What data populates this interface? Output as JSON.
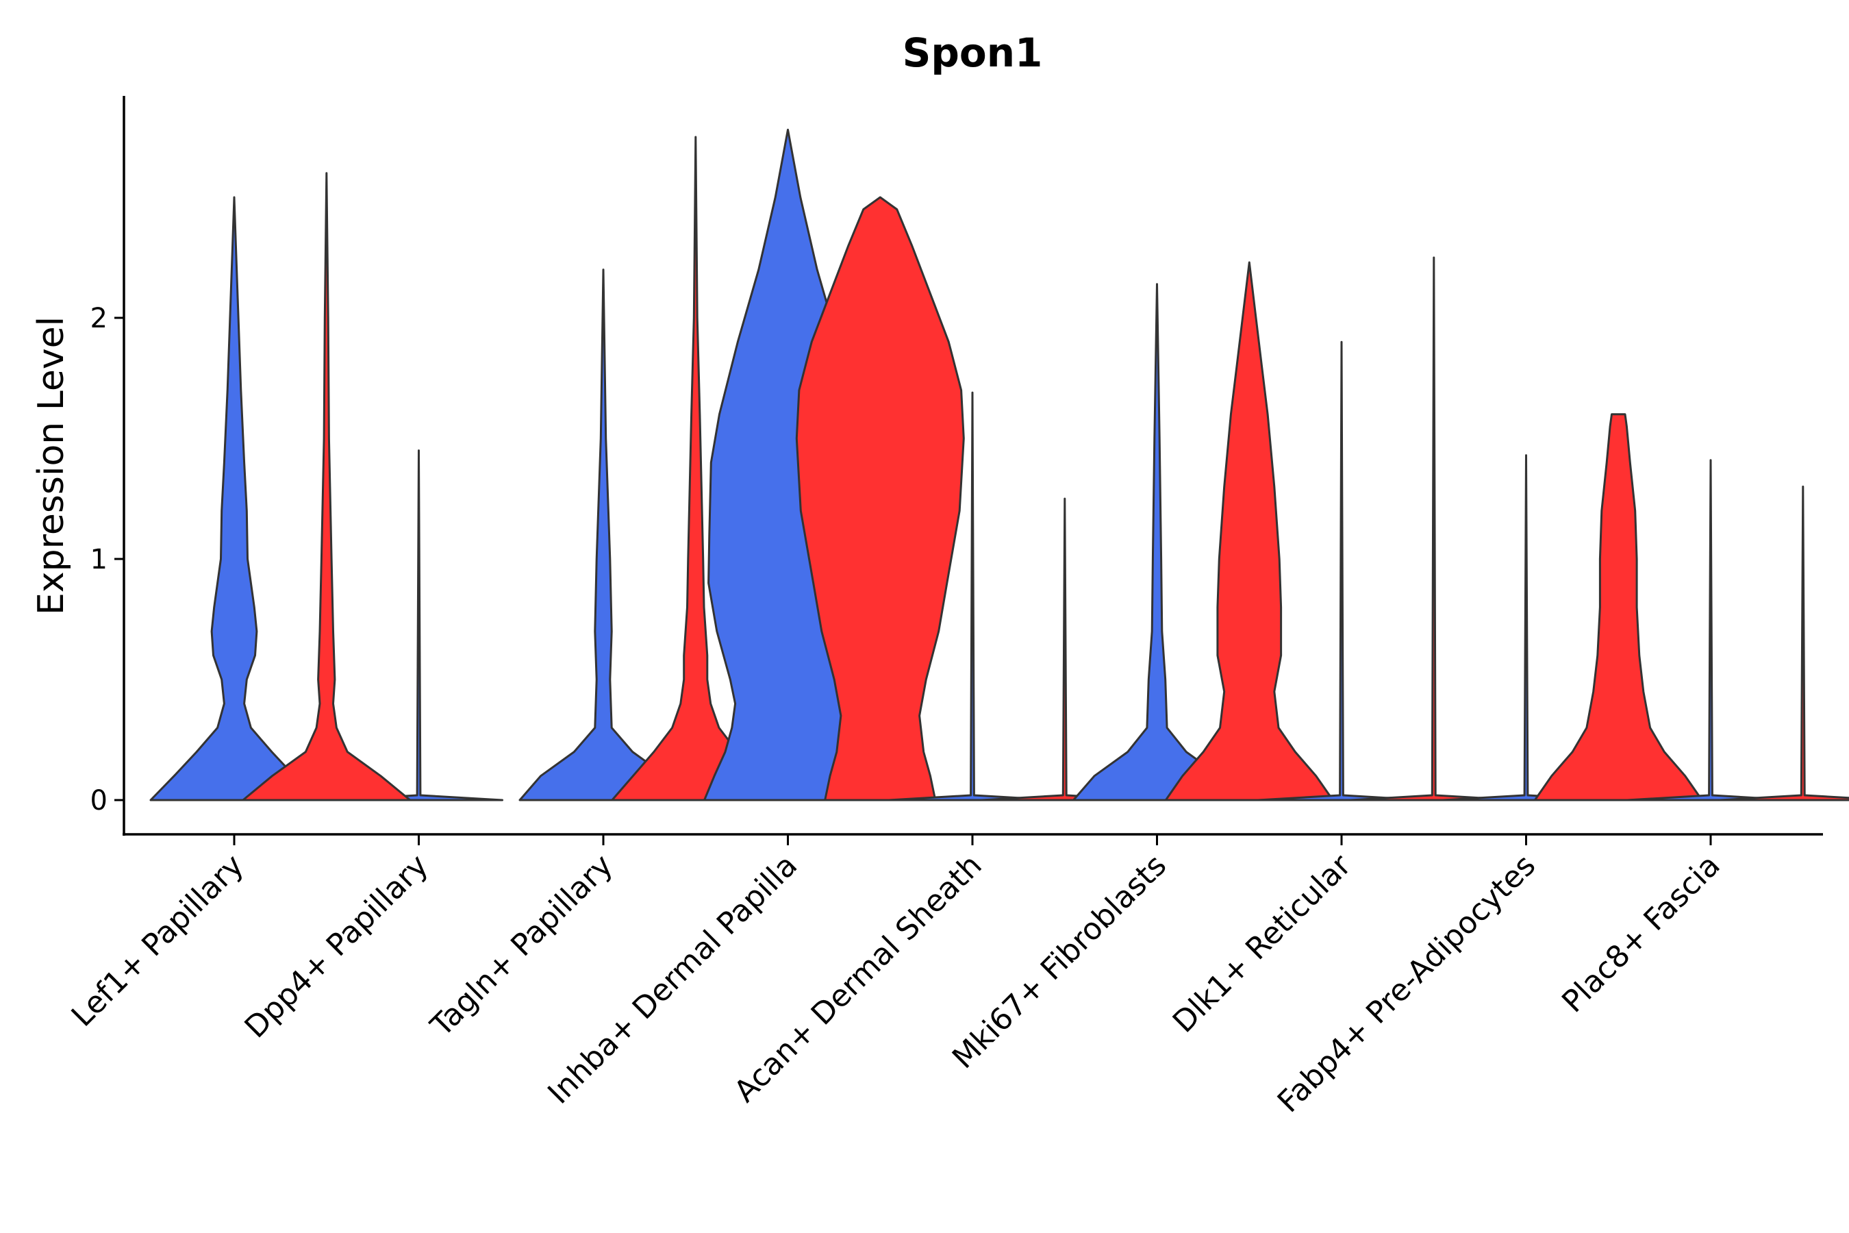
{
  "chart_data": {
    "type": "violin",
    "title": "Spon1",
    "xlabel": "",
    "ylabel": "Expression Level",
    "ylim": [
      -0.14,
      2.9
    ],
    "yticks": [
      0,
      1,
      2
    ],
    "legend": "none",
    "colors": {
      "group_a": "#4670EB",
      "group_b": "#FF3131",
      "outline": "#333333"
    },
    "categories": [
      "Lef1+ Papillary",
      "Dpp4+ Papillary",
      "Tagln+ Papillary",
      "Inhba+ Dermal Papilla",
      "Acan+ Dermal Sheath",
      "Mki67+ Fibroblasts",
      "Dlk1+ Reticular",
      "Fabp4+ Pre-Adipocytes",
      "Plac8+ Fascia"
    ],
    "violins": [
      {
        "category": 0,
        "group": "a",
        "max": 2.5,
        "profile": [
          [
            0,
            1.0
          ],
          [
            0.1,
            0.72
          ],
          [
            0.2,
            0.45
          ],
          [
            0.3,
            0.2
          ],
          [
            0.4,
            0.12
          ],
          [
            0.5,
            0.15
          ],
          [
            0.6,
            0.25
          ],
          [
            0.7,
            0.27
          ],
          [
            0.8,
            0.24
          ],
          [
            0.9,
            0.2
          ],
          [
            1.0,
            0.16
          ],
          [
            1.2,
            0.15
          ],
          [
            1.4,
            0.12
          ],
          [
            1.7,
            0.08
          ],
          [
            2.0,
            0.05
          ],
          [
            2.3,
            0.02
          ],
          [
            2.5,
            0.0
          ]
        ]
      },
      {
        "category": 1,
        "group": "a",
        "max": 1.45,
        "profile": [
          [
            0,
            1.0
          ],
          [
            0.02,
            0.02
          ],
          [
            1.45,
            0.0
          ]
        ]
      },
      {
        "category": 0.5,
        "group": "b",
        "max": 2.6,
        "profile": [
          [
            0,
            1.0
          ],
          [
            0.1,
            0.65
          ],
          [
            0.2,
            0.25
          ],
          [
            0.3,
            0.12
          ],
          [
            0.4,
            0.08
          ],
          [
            0.5,
            0.1
          ],
          [
            0.7,
            0.08
          ],
          [
            1.0,
            0.06
          ],
          [
            1.5,
            0.03
          ],
          [
            2.0,
            0.02
          ],
          [
            2.6,
            0.0
          ]
        ]
      },
      {
        "category": 2,
        "group": "a",
        "max": 2.2,
        "profile": [
          [
            0,
            1.0
          ],
          [
            0.1,
            0.75
          ],
          [
            0.2,
            0.35
          ],
          [
            0.3,
            0.1
          ],
          [
            0.5,
            0.08
          ],
          [
            0.7,
            0.1
          ],
          [
            1.0,
            0.08
          ],
          [
            1.5,
            0.03
          ],
          [
            2.2,
            0.0
          ]
        ]
      },
      {
        "category": 2.5,
        "group": "b",
        "max": 2.75,
        "profile": [
          [
            0,
            1.0
          ],
          [
            0.1,
            0.75
          ],
          [
            0.2,
            0.5
          ],
          [
            0.3,
            0.28
          ],
          [
            0.4,
            0.18
          ],
          [
            0.5,
            0.14
          ],
          [
            0.6,
            0.14
          ],
          [
            0.8,
            0.1
          ],
          [
            1.0,
            0.09
          ],
          [
            1.3,
            0.07
          ],
          [
            1.6,
            0.05
          ],
          [
            2.0,
            0.02
          ],
          [
            2.75,
            0.0
          ]
        ]
      },
      {
        "category": 3,
        "group": "a",
        "max": 2.78,
        "profile": [
          [
            0,
            1.0
          ],
          [
            0.1,
            0.88
          ],
          [
            0.2,
            0.75
          ],
          [
            0.3,
            0.67
          ],
          [
            0.4,
            0.63
          ],
          [
            0.5,
            0.69
          ],
          [
            0.7,
            0.85
          ],
          [
            0.9,
            0.95
          ],
          [
            1.1,
            0.94
          ],
          [
            1.4,
            0.92
          ],
          [
            1.6,
            0.82
          ],
          [
            1.9,
            0.6
          ],
          [
            2.2,
            0.35
          ],
          [
            2.5,
            0.15
          ],
          [
            2.78,
            0.0
          ]
        ]
      },
      {
        "category": 3.5,
        "group": "b",
        "max": 2.5,
        "profile": [
          [
            0,
            0.66
          ],
          [
            0.1,
            0.6
          ],
          [
            0.2,
            0.52
          ],
          [
            0.35,
            0.47
          ],
          [
            0.5,
            0.55
          ],
          [
            0.7,
            0.7
          ],
          [
            0.9,
            0.8
          ],
          [
            1.2,
            0.95
          ],
          [
            1.5,
            1.0
          ],
          [
            1.7,
            0.97
          ],
          [
            1.9,
            0.82
          ],
          [
            2.1,
            0.6
          ],
          [
            2.3,
            0.38
          ],
          [
            2.45,
            0.2
          ],
          [
            2.5,
            0.0
          ]
        ]
      },
      {
        "category": 4,
        "group": "a",
        "max": 1.69,
        "profile": [
          [
            0,
            1.0
          ],
          [
            0.02,
            0.02
          ],
          [
            1.69,
            0.0
          ]
        ]
      },
      {
        "category": 4.5,
        "group": "b",
        "max": 1.25,
        "profile": [
          [
            0,
            1.0
          ],
          [
            0.02,
            0.02
          ],
          [
            1.25,
            0.0
          ]
        ]
      },
      {
        "category": 5,
        "group": "a",
        "max": 2.14,
        "profile": [
          [
            0,
            1.0
          ],
          [
            0.1,
            0.75
          ],
          [
            0.2,
            0.35
          ],
          [
            0.3,
            0.12
          ],
          [
            0.5,
            0.1
          ],
          [
            0.7,
            0.06
          ],
          [
            1.0,
            0.05
          ],
          [
            1.5,
            0.03
          ],
          [
            2.14,
            0.0
          ]
        ]
      },
      {
        "category": 5.5,
        "group": "b",
        "max": 2.23,
        "profile": [
          [
            0,
            1.0
          ],
          [
            0.1,
            0.8
          ],
          [
            0.2,
            0.55
          ],
          [
            0.3,
            0.35
          ],
          [
            0.45,
            0.3
          ],
          [
            0.6,
            0.38
          ],
          [
            0.8,
            0.38
          ],
          [
            1.0,
            0.36
          ],
          [
            1.3,
            0.3
          ],
          [
            1.6,
            0.22
          ],
          [
            1.8,
            0.15
          ],
          [
            2.0,
            0.08
          ],
          [
            2.23,
            0.0
          ]
        ]
      },
      {
        "category": 6,
        "group": "a",
        "max": 1.9,
        "profile": [
          [
            0,
            1.0
          ],
          [
            0.02,
            0.02
          ],
          [
            1.9,
            0.0
          ]
        ]
      },
      {
        "category": 6.5,
        "group": "b",
        "max": 2.25,
        "profile": [
          [
            0,
            1.0
          ],
          [
            0.02,
            0.02
          ],
          [
            2.25,
            0.0
          ]
        ]
      },
      {
        "category": 7,
        "group": "a",
        "max": 1.43,
        "profile": [
          [
            0,
            1.0
          ],
          [
            0.02,
            0.02
          ],
          [
            1.43,
            0.0
          ]
        ]
      },
      {
        "category": 7.5,
        "group": "b",
        "max": 1.6,
        "profile": [
          [
            0,
            1.0
          ],
          [
            0.1,
            0.8
          ],
          [
            0.2,
            0.55
          ],
          [
            0.3,
            0.38
          ],
          [
            0.45,
            0.3
          ],
          [
            0.6,
            0.25
          ],
          [
            0.8,
            0.22
          ],
          [
            1.0,
            0.22
          ],
          [
            1.2,
            0.2
          ],
          [
            1.4,
            0.14
          ],
          [
            1.55,
            0.1
          ],
          [
            1.6,
            0.08
          ]
        ]
      },
      {
        "category": 8,
        "group": "a",
        "max": 1.41,
        "profile": [
          [
            0,
            1.0
          ],
          [
            0.02,
            0.02
          ],
          [
            1.41,
            0.0
          ]
        ]
      },
      {
        "category": 8.5,
        "group": "b",
        "max": 1.3,
        "profile": [
          [
            0,
            1.0
          ],
          [
            0.02,
            0.02
          ],
          [
            1.3,
            0.0
          ]
        ]
      }
    ]
  }
}
